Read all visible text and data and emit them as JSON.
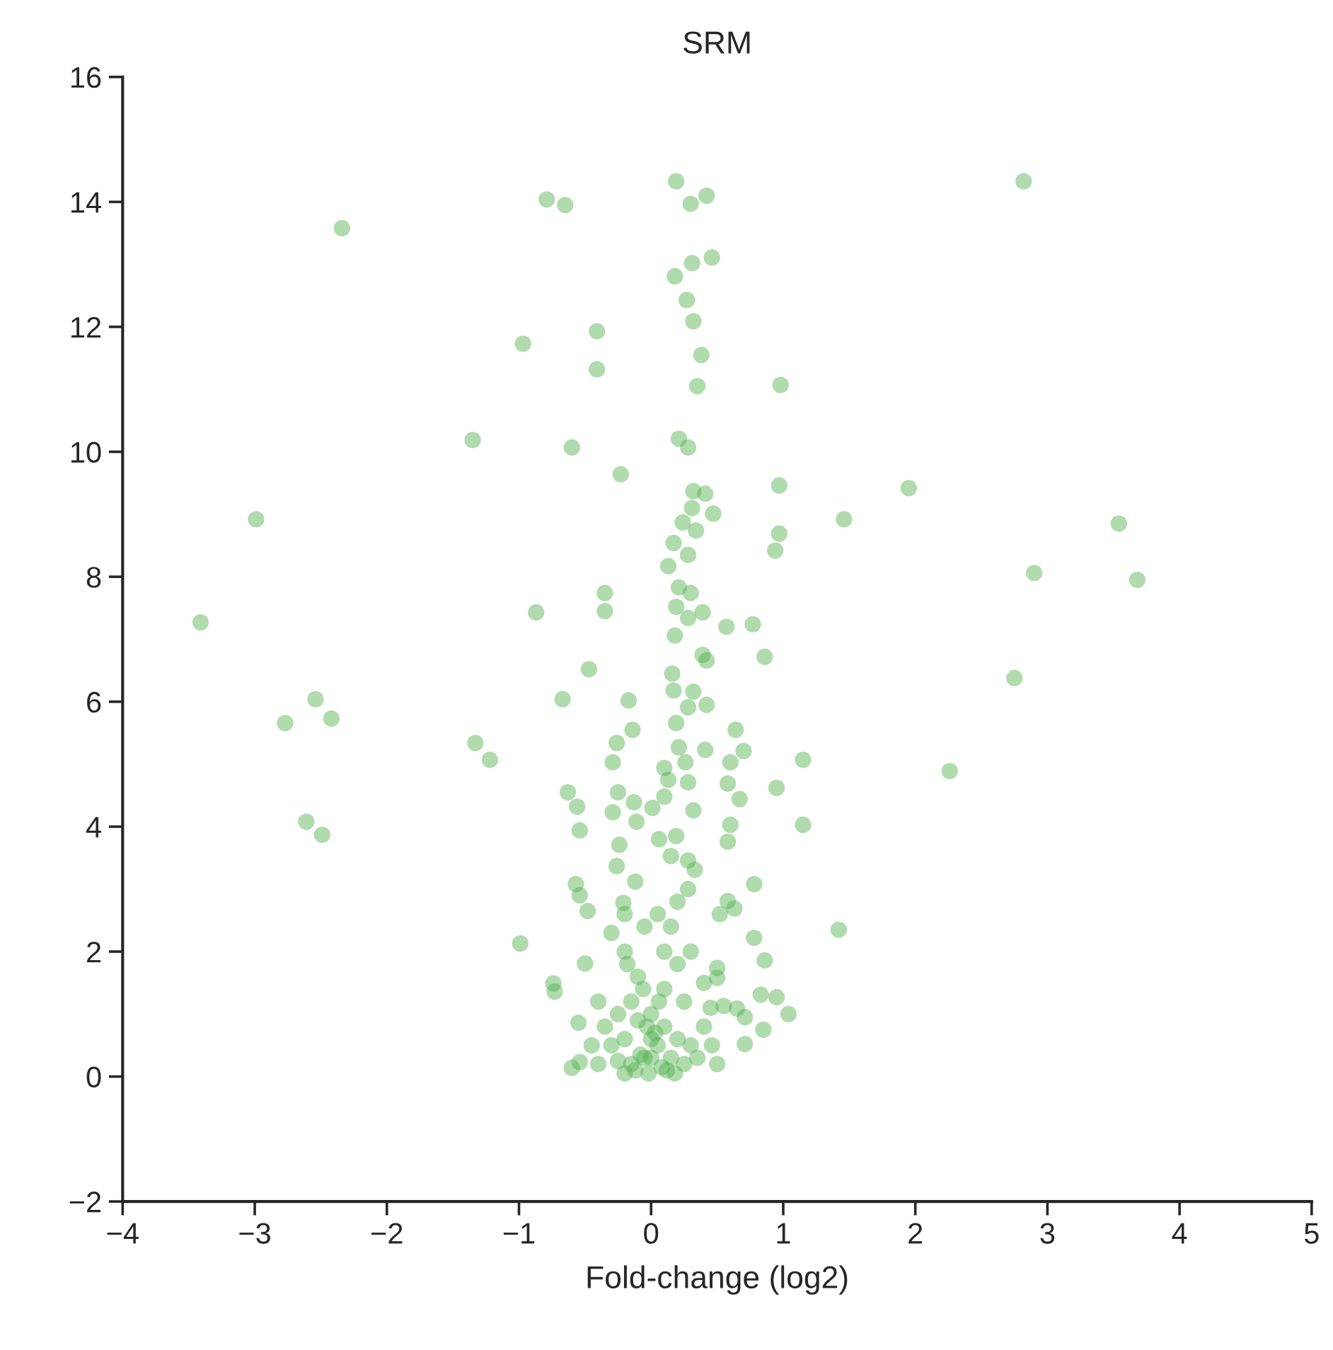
{
  "chart_data": {
    "type": "scatter",
    "title": "SRM",
    "xlabel": "Fold-change (log2)",
    "xlim": [
      -4,
      5
    ],
    "xticks": [
      {
        "value": -4,
        "label": "−4"
      },
      {
        "value": -3,
        "label": "−3"
      },
      {
        "value": -2,
        "label": "−2"
      },
      {
        "value": -1,
        "label": "−1"
      },
      0,
      1,
      2,
      3,
      4,
      5
    ],
    "ylim": [
      -2,
      16
    ],
    "yticks": [
      {
        "value": -2,
        "label": "−2"
      },
      0,
      2,
      4,
      6,
      8,
      10,
      12,
      14,
      16
    ],
    "marker": "circle",
    "series": [
      {
        "color": "#4daf4a",
        "x": [
          -3.41,
          -2.99,
          -2.34,
          -2.54,
          -2.77,
          -2.42,
          -2.61,
          -2.49,
          -1.35,
          -1.33,
          -1.22,
          -0.99,
          -0.97,
          -0.79,
          -0.65,
          -0.6,
          -0.41,
          -0.41,
          -0.23,
          -0.35,
          -0.35,
          -0.87,
          -0.47,
          -0.67,
          -0.17,
          -0.14,
          0.19,
          0.42,
          0.46,
          0.31,
          0.3,
          0.18,
          0.27,
          0.32,
          0.38,
          0.35,
          0.98,
          0.21,
          0.28,
          2.82,
          1.95,
          1.46,
          0.97,
          0.97,
          0.94,
          3.54,
          2.9,
          3.68,
          2.75,
          2.26,
          1.42,
          1.15,
          1.15,
          0.95,
          0.86,
          0.95,
          1.04,
          0.77,
          0.86,
          0.57,
          0.42,
          0.32,
          0.41,
          0.47,
          0.31,
          0.34,
          0.24,
          0.17,
          0.28,
          0.13,
          0.21,
          0.3,
          0.39,
          0.19,
          0.28,
          0.39,
          0.42,
          0.18,
          0.16,
          0.17,
          0.32,
          0.28,
          0.19,
          0.64,
          0.7,
          0.41,
          0.6,
          0.21,
          0.26,
          0.1,
          0.13,
          0.28,
          -0.26,
          -0.29,
          -0.25,
          -0.63,
          -0.56,
          -0.54,
          -0.29,
          -0.13,
          -0.11,
          -0.24,
          -0.26,
          -0.12,
          -0.57,
          -0.54,
          -0.48,
          -0.21,
          -0.5,
          -0.74,
          -0.73,
          -0.55,
          -0.54,
          -0.6,
          0.78,
          0.58,
          0.63,
          0.52,
          0.78,
          0.58,
          0.6,
          0.67,
          0.58,
          0.19,
          0.28,
          0.33,
          0.15,
          0.32,
          0.01,
          0.1,
          0.06,
          0.5,
          0.5,
          0.65,
          0.83,
          0.85,
          0.71,
          0.46,
          0.71,
          0.55,
          -0.3,
          -0.2,
          -0.1,
          0.1,
          0.2,
          0.3,
          0.15,
          0.05,
          -0.05,
          0.25,
          -0.15,
          -0.25,
          -0.35,
          -0.3,
          -0.2,
          -0.1,
          0.0,
          0.1,
          0.2,
          0.3,
          0.4,
          0.35,
          0.25,
          0.15,
          0.05,
          -0.05,
          -0.15,
          -0.25,
          -0.4,
          -0.02,
          0.08,
          -0.08,
          0.12,
          -0.12,
          0.03,
          -0.03,
          0.06,
          -0.06,
          0.1,
          0.2,
          0.28,
          -0.18,
          -0.2,
          0.4,
          0.45,
          -0.4,
          -0.45,
          0.5,
          0.18,
          -0.2,
          0.0,
          0.0
        ],
        "values": [
          7.27,
          8.92,
          13.58,
          6.04,
          5.66,
          5.73,
          4.08,
          3.87,
          10.19,
          5.34,
          5.07,
          2.13,
          11.73,
          14.04,
          13.95,
          10.07,
          11.93,
          11.32,
          9.64,
          7.74,
          7.45,
          7.43,
          6.52,
          6.04,
          6.02,
          5.55,
          14.33,
          14.1,
          13.11,
          13.02,
          13.97,
          12.81,
          12.43,
          12.09,
          11.55,
          11.05,
          11.07,
          10.21,
          10.07,
          14.33,
          9.42,
          8.92,
          9.46,
          8.69,
          8.42,
          8.85,
          8.06,
          7.95,
          6.38,
          4.89,
          2.35,
          5.07,
          4.03,
          4.62,
          1.86,
          1.27,
          1.0,
          7.24,
          6.72,
          7.2,
          5.95,
          9.37,
          9.33,
          9.01,
          9.1,
          8.74,
          8.87,
          8.54,
          8.35,
          8.17,
          7.83,
          7.74,
          7.43,
          7.52,
          7.34,
          6.75,
          6.66,
          7.06,
          6.45,
          6.18,
          6.16,
          5.91,
          5.66,
          5.55,
          5.21,
          5.23,
          5.03,
          5.27,
          5.03,
          4.94,
          4.75,
          4.71,
          5.34,
          5.03,
          4.55,
          4.55,
          4.32,
          3.94,
          4.23,
          4.39,
          4.08,
          3.71,
          3.37,
          3.12,
          3.08,
          2.9,
          2.65,
          2.78,
          1.81,
          1.49,
          1.36,
          0.86,
          0.23,
          0.14,
          3.08,
          2.81,
          2.69,
          2.6,
          2.22,
          3.76,
          4.03,
          4.44,
          4.69,
          3.85,
          3.46,
          3.31,
          3.53,
          4.26,
          4.3,
          4.48,
          3.8,
          1.74,
          1.58,
          1.09,
          1.31,
          0.75,
          0.52,
          0.5,
          0.95,
          1.13,
          2.3,
          2.0,
          1.6,
          1.4,
          1.8,
          2.0,
          2.4,
          2.6,
          2.4,
          1.2,
          1.2,
          1.0,
          0.8,
          0.5,
          0.6,
          0.9,
          1.0,
          0.8,
          0.6,
          0.5,
          0.8,
          0.3,
          0.2,
          0.3,
          0.5,
          0.3,
          0.2,
          0.25,
          0.2,
          0.05,
          0.15,
          0.35,
          0.1,
          0.1,
          0.7,
          0.8,
          1.2,
          1.4,
          2.0,
          2.8,
          3.0,
          1.8,
          2.6,
          1.5,
          1.1,
          1.2,
          0.5,
          0.2,
          0.05,
          0.05,
          0.3,
          0.6
        ]
      }
    ]
  }
}
